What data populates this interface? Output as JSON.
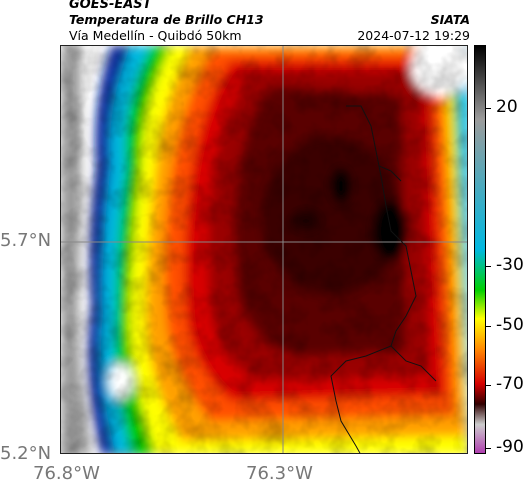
{
  "header": {
    "satellite": "GOES-EAST",
    "product": "Temperatura de Brillo CH13",
    "region": "Vía Medellín - Quibdó 50km",
    "organization": "SIATA",
    "datetime": "2024-07-12 19:29"
  },
  "map": {
    "lat_labels": [
      "5.7°N",
      "5.2°N"
    ],
    "lon_labels": [
      "76.8°W",
      "76.3°W"
    ]
  },
  "colorbar": {
    "tick_labels": [
      "20",
      "-30",
      "-50",
      "-70",
      "-90"
    ],
    "colors": [
      "#000000",
      "#9b9b9b",
      "#00b8e0",
      "#00d000",
      "#ffff00",
      "#ff8000",
      "#d40000",
      "#300000",
      "#cccccc",
      "#b040b0"
    ]
  }
}
